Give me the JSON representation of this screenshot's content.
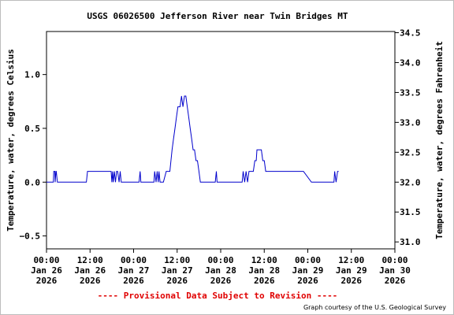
{
  "chart_data": {
    "type": "line",
    "title": "USGS 06026500 Jefferson River near Twin Bridges MT",
    "ylabel_left": "Temperature, water, degrees Celsius",
    "ylabel_right": "Temperature, water, degrees Fahrenheit",
    "left_axis": {
      "ylim": [
        -0.62,
        1.4
      ],
      "ticks": [
        -0.5,
        0.0,
        0.5,
        1.0
      ],
      "tick_labels": [
        "−0.5",
        "0.0",
        "0.5",
        "1.0"
      ]
    },
    "right_axis": {
      "ylim": [
        30.884,
        34.52
      ],
      "ticks": [
        31.0,
        31.5,
        32.0,
        32.5,
        33.0,
        33.5,
        34.0,
        34.5
      ],
      "tick_labels": [
        "31.0",
        "31.5",
        "32.0",
        "32.5",
        "33.0",
        "33.5",
        "34.0",
        "34.5"
      ]
    },
    "x_axis": {
      "xlim_hours": [
        0,
        96
      ],
      "ticks": [
        {
          "hours": 0,
          "lines": [
            "00:00",
            "Jan 26",
            "2026"
          ]
        },
        {
          "hours": 12,
          "lines": [
            "12:00",
            "Jan 26",
            "2026"
          ]
        },
        {
          "hours": 24,
          "lines": [
            "00:00",
            "Jan 27",
            "2026"
          ]
        },
        {
          "hours": 36,
          "lines": [
            "12:00",
            "Jan 27",
            "2026"
          ]
        },
        {
          "hours": 48,
          "lines": [
            "00:00",
            "Jan 28",
            "2026"
          ]
        },
        {
          "hours": 60,
          "lines": [
            "12:00",
            "Jan 28",
            "2026"
          ]
        },
        {
          "hours": 72,
          "lines": [
            "00:00",
            "Jan 29",
            "2026"
          ]
        },
        {
          "hours": 84,
          "lines": [
            "12:00",
            "Jan 29",
            "2026"
          ]
        },
        {
          "hours": 96,
          "lines": [
            "00:00",
            "Jan 30",
            "2026"
          ]
        }
      ]
    },
    "grid": false,
    "series": [
      {
        "color": "#0000cc",
        "x_hours": [
          0,
          1.9,
          2.0,
          2.3,
          2.4,
          2.6,
          2.7,
          3.0,
          3.2,
          11.0,
          11.3,
          17.8,
          18.0,
          18.2,
          18.4,
          18.7,
          19.0,
          19.3,
          19.6,
          20.0,
          20.3,
          20.6,
          21.0,
          25.5,
          25.8,
          26.0,
          29.6,
          29.8,
          30.2,
          30.5,
          30.8,
          31.0,
          31.3,
          31.7,
          32.2,
          33.0,
          33.3,
          33.6,
          34.0,
          34.3,
          34.6,
          35.0,
          35.4,
          35.8,
          36.2,
          36.5,
          36.8,
          37.2,
          37.6,
          38.0,
          38.4,
          38.8,
          39.2,
          39.6,
          40.0,
          40.4,
          40.8,
          41.2,
          41.6,
          42.0,
          42.4,
          42.8,
          43.2,
          46.5,
          46.8,
          47.0,
          53.9,
          54.2,
          54.6,
          55.0,
          55.4,
          55.8,
          56.2,
          56.6,
          57.0,
          57.4,
          57.8,
          58.0,
          58.4,
          58.8,
          59.2,
          59.6,
          60.0,
          60.4,
          60.8,
          61.2,
          61.6,
          62.0,
          62.4,
          62.8,
          63.2,
          63.6,
          64.0,
          64.4,
          64.8,
          65.2,
          65.6,
          66.0,
          66.4,
          66.8,
          67.2,
          67.6,
          68.0,
          68.4,
          68.8,
          69.2,
          69.6,
          70.0,
          70.4,
          70.8,
          73.0,
          73.3,
          73.6,
          74.0,
          79.2,
          79.4,
          79.8,
          80.2,
          80.5
        ],
        "y_celsius": [
          0.0,
          0.0,
          0.1,
          0.1,
          0.0,
          0.1,
          0.1,
          0.0,
          0.0,
          0.0,
          0.1,
          0.1,
          0.0,
          0.1,
          0.0,
          0.1,
          0.0,
          0.1,
          0.1,
          0.0,
          0.1,
          0.0,
          0.0,
          0.0,
          0.1,
          0.0,
          0.0,
          0.1,
          0.0,
          0.1,
          0.0,
          0.1,
          0.0,
          0.0,
          0.0,
          0.1,
          0.1,
          0.1,
          0.1,
          0.2,
          0.3,
          0.4,
          0.5,
          0.6,
          0.7,
          0.7,
          0.7,
          0.8,
          0.7,
          0.8,
          0.8,
          0.7,
          0.6,
          0.5,
          0.4,
          0.3,
          0.3,
          0.2,
          0.2,
          0.1,
          0.0,
          0.0,
          0.0,
          0.0,
          0.1,
          0.0,
          0.0,
          0.1,
          0.0,
          0.1,
          0.0,
          0.1,
          0.1,
          0.1,
          0.1,
          0.2,
          0.2,
          0.3,
          0.3,
          0.3,
          0.3,
          0.2,
          0.2,
          0.1,
          0.1,
          0.1,
          0.1,
          0.1,
          0.1,
          0.1,
          0.1,
          0.1,
          0.1,
          0.1,
          0.1,
          0.1,
          0.1,
          0.1,
          0.1,
          0.1,
          0.1,
          0.1,
          0.1,
          0.1,
          0.1,
          0.1,
          0.1,
          0.1,
          0.1,
          0.1,
          0.0,
          0.0,
          0.0,
          0.0,
          0.0,
          0.1,
          0.0,
          0.1,
          0.1
        ]
      }
    ]
  },
  "footer": {
    "provisional": "---- Provisional Data Subject to Revision ----",
    "credit": "Graph courtesy of the U.S. Geological Survey",
    "provisional_color": "#e00000"
  }
}
